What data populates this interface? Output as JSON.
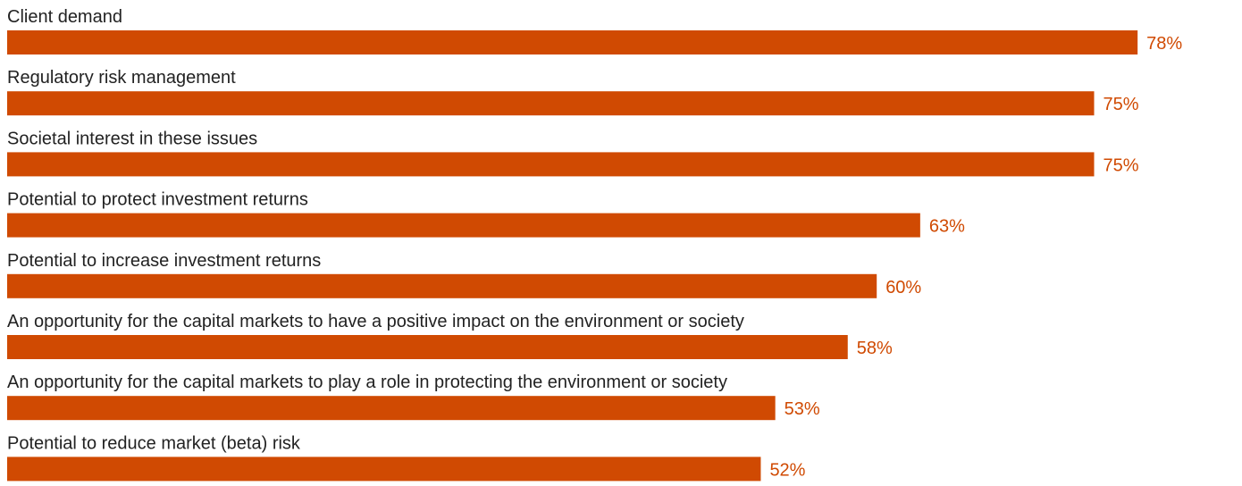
{
  "chart_data": {
    "type": "bar",
    "orientation": "horizontal",
    "categories": [
      "Client demand",
      "Regulatory risk management",
      "Societal interest in these issues",
      "Potential to protect investment returns",
      "Potential to increase investment returns",
      "An opportunity for the capital markets to have a positive impact on the environment or society",
      "An opportunity for the capital markets to play a role in protecting the environment or society",
      "Potential to reduce market (beta) risk"
    ],
    "values": [
      78,
      75,
      75,
      63,
      60,
      58,
      53,
      52
    ],
    "value_labels": [
      "78%",
      "75%",
      "75%",
      "63%",
      "60%",
      "58%",
      "53%",
      "52%"
    ],
    "unit": "%",
    "title": "",
    "xlabel": "",
    "ylabel": "",
    "grid": false,
    "legend": "none",
    "colors": {
      "bar": "#d04a02",
      "value_label": "#d04a02",
      "category_label": "#222222"
    }
  }
}
